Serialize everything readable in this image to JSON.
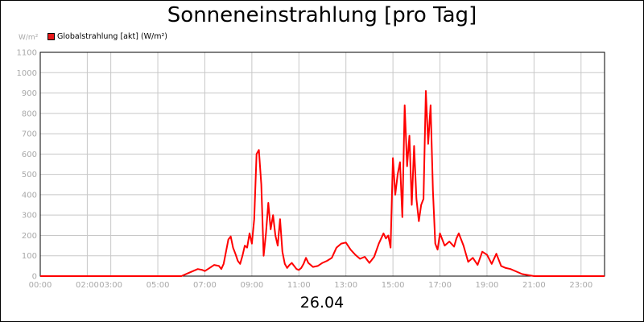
{
  "chart_data": {
    "type": "line",
    "title": "Sonneneinstrahlung [pro Tag]",
    "ylabel": "W/m²",
    "xlabel": "26.04",
    "ylim": [
      0,
      1100
    ],
    "yticks": [
      0,
      100,
      200,
      300,
      400,
      500,
      600,
      700,
      800,
      900,
      1000,
      1100
    ],
    "xlim": [
      0,
      24
    ],
    "xtick_labels": [
      {
        "x": 0,
        "label": "00:00"
      },
      {
        "x": 2,
        "label": "02:00"
      },
      {
        "x": 3,
        "label": "03:00"
      },
      {
        "x": 5,
        "label": "05:00"
      },
      {
        "x": 7,
        "label": "07:00"
      },
      {
        "x": 9,
        "label": "09:00"
      },
      {
        "x": 11,
        "label": "11:00"
      },
      {
        "x": 13,
        "label": "13:00"
      },
      {
        "x": 15,
        "label": "15:00"
      },
      {
        "x": 17,
        "label": "17:00"
      },
      {
        "x": 19,
        "label": "19:00"
      },
      {
        "x": 21,
        "label": "21:00"
      },
      {
        "x": 23,
        "label": "23:00"
      }
    ],
    "grid": true,
    "legend_position": "top-left",
    "series": [
      {
        "name": "Globalstrahlung [akt] (W/m²)",
        "color": "#ff0000",
        "x": [
          0,
          6.0,
          6.3,
          6.5,
          6.7,
          6.9,
          7.0,
          7.2,
          7.4,
          7.6,
          7.7,
          7.8,
          8.0,
          8.1,
          8.2,
          8.3,
          8.4,
          8.5,
          8.6,
          8.7,
          8.8,
          8.9,
          9.0,
          9.1,
          9.2,
          9.3,
          9.4,
          9.5,
          9.6,
          9.7,
          9.8,
          9.9,
          10.0,
          10.1,
          10.2,
          10.3,
          10.4,
          10.5,
          10.6,
          10.7,
          10.8,
          10.9,
          11.0,
          11.1,
          11.2,
          11.3,
          11.4,
          11.6,
          11.8,
          12.0,
          12.2,
          12.4,
          12.6,
          12.8,
          13.0,
          13.2,
          13.4,
          13.6,
          13.8,
          14.0,
          14.2,
          14.4,
          14.6,
          14.7,
          14.8,
          14.9,
          15.0,
          15.1,
          15.2,
          15.3,
          15.4,
          15.5,
          15.6,
          15.7,
          15.8,
          15.9,
          16.0,
          16.1,
          16.2,
          16.3,
          16.4,
          16.5,
          16.6,
          16.7,
          16.8,
          16.9,
          17.0,
          17.2,
          17.4,
          17.6,
          17.7,
          17.8,
          18.0,
          18.2,
          18.4,
          18.6,
          18.8,
          19.0,
          19.2,
          19.4,
          19.6,
          19.8,
          20.0,
          20.5,
          21.0,
          24.0
        ],
        "y": [
          0,
          0,
          15,
          25,
          35,
          30,
          25,
          40,
          55,
          50,
          35,
          60,
          180,
          195,
          140,
          110,
          75,
          60,
          100,
          150,
          140,
          210,
          160,
          280,
          600,
          620,
          450,
          100,
          210,
          360,
          230,
          300,
          200,
          150,
          280,
          120,
          60,
          40,
          55,
          65,
          50,
          35,
          30,
          40,
          60,
          90,
          65,
          45,
          50,
          65,
          75,
          90,
          140,
          160,
          165,
          130,
          105,
          85,
          95,
          65,
          95,
          160,
          210,
          185,
          200,
          140,
          580,
          400,
          500,
          560,
          290,
          840,
          540,
          690,
          350,
          640,
          380,
          270,
          350,
          380,
          910,
          650,
          840,
          420,
          160,
          130,
          210,
          150,
          170,
          145,
          185,
          210,
          150,
          70,
          90,
          55,
          120,
          105,
          60,
          110,
          50,
          40,
          35,
          10,
          0,
          0
        ]
      }
    ]
  }
}
